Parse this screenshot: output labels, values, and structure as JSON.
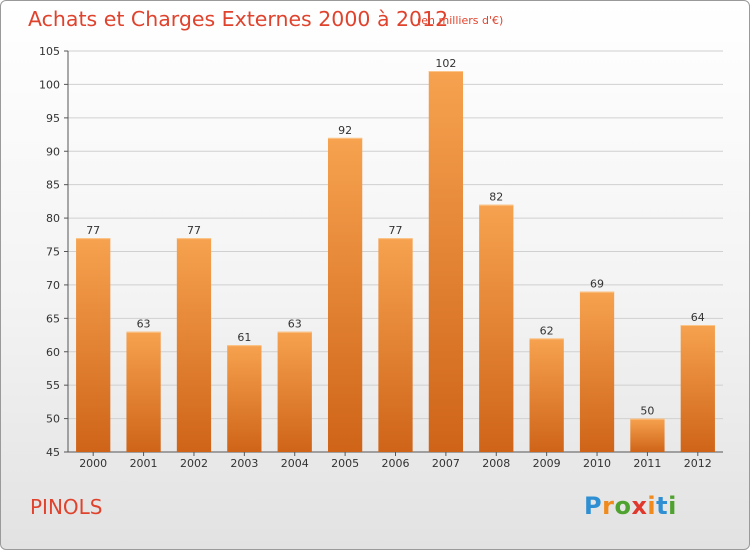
{
  "header": {
    "title": "Achats et Charges Externes 2000 à 2012",
    "subtitle": "(en milliers d'€)"
  },
  "footer": {
    "location": "PINOLS",
    "brand": [
      "P",
      "r",
      "o",
      "x",
      "i",
      "t",
      "i"
    ],
    "brand_colors": [
      "#2f8fd3",
      "#f08a1d",
      "#4fa22f",
      "#e0382c",
      "#f08a1d",
      "#2f8fd3",
      "#4fa22f"
    ]
  },
  "colors": {
    "bar_top": "#f6a24f",
    "bar_bottom": "#cf6418",
    "text": "#e0432d"
  },
  "chart_data": {
    "type": "bar",
    "categories": [
      "2000",
      "2001",
      "2002",
      "2003",
      "2004",
      "2005",
      "2006",
      "2007",
      "2008",
      "2009",
      "2010",
      "2011",
      "2012"
    ],
    "values": [
      77,
      63,
      77,
      61,
      63,
      92,
      77,
      102,
      82,
      62,
      69,
      50,
      64
    ],
    "ylim": [
      45,
      105
    ],
    "yticks": [
      45,
      50,
      55,
      60,
      65,
      70,
      75,
      80,
      85,
      90,
      95,
      100,
      105
    ],
    "grid": true
  }
}
